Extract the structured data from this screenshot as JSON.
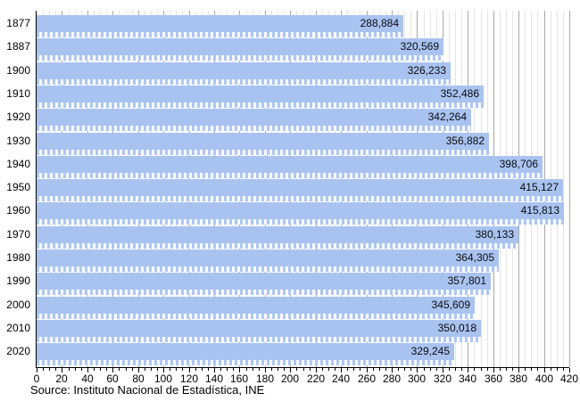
{
  "chart_data": {
    "type": "bar",
    "orientation": "horizontal",
    "title": "",
    "categories": [
      "1877",
      "1887",
      "1900",
      "1910",
      "1920",
      "1930",
      "1940",
      "1950",
      "1960",
      "1970",
      "1980",
      "1990",
      "2000",
      "2010",
      "2020"
    ],
    "values": [
      288884,
      320569,
      326233,
      352486,
      342264,
      356882,
      398706,
      415127,
      415813,
      380133,
      364305,
      357801,
      345609,
      350018,
      329245
    ],
    "value_labels": [
      "288,884",
      "320,569",
      "326,233",
      "352,486",
      "342,264",
      "356,882",
      "398,706",
      "415,127",
      "415,813",
      "380,133",
      "364,305",
      "357,801",
      "345,609",
      "350,018",
      "329,245"
    ],
    "x_axis": {
      "min": 0,
      "max": 420,
      "major_step": 20,
      "minor_step": 5,
      "tick_labels": [
        "0",
        "20",
        "40",
        "60",
        "80",
        "100",
        "120",
        "140",
        "160",
        "180",
        "200",
        "220",
        "240",
        "260",
        "280",
        "300",
        "320",
        "340",
        "360",
        "380",
        "400",
        "420"
      ]
    },
    "grid": true,
    "legend": false,
    "source": "Source: Instituto Nacional de Estadística, INE",
    "colors": {
      "bar": "#a9c3f1",
      "dither_light": "#f7faff",
      "dither_dark": "#aec7f2",
      "grid_major": "#a8a8a8",
      "grid_minor": "#e4e4e4",
      "axis": "#000000",
      "text": "#000000"
    }
  }
}
